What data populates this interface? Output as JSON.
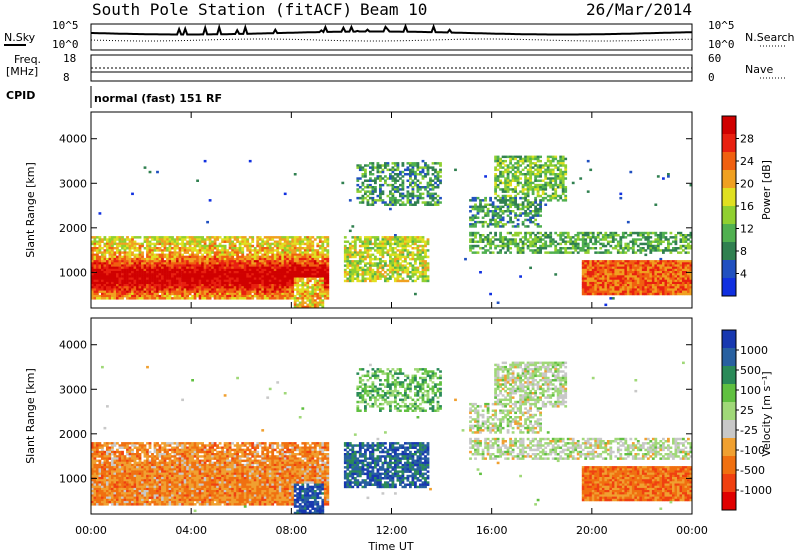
{
  "header": {
    "station": "South Pole Station (fitACF)",
    "beam": "Beam 10",
    "date": "26/Mar/2014"
  },
  "noise_panel": {
    "left_label": "N.Sky",
    "right_label": "N.Search",
    "tick_top": "10^5",
    "tick_bottom": "10^0"
  },
  "freq_panel": {
    "left_label_1": "Freq.",
    "left_label_2": "[MHz]",
    "right_label": "Nave",
    "left_ticks": [
      "18",
      "8"
    ],
    "right_ticks": [
      "60",
      "0"
    ]
  },
  "cpid": {
    "label": "CPID",
    "value": "normal (fast) 151 RF"
  },
  "chart_data": [
    {
      "type": "heatmap",
      "name": "power",
      "ylabel": "Slant Range [km]",
      "xlabel": "",
      "ylim": [
        200,
        4600
      ],
      "y_ticks": [
        1000,
        2000,
        3000,
        4000
      ],
      "colorbar": {
        "label": "Power [dB]",
        "ticks": [
          "4",
          "8",
          "12",
          "16",
          "20",
          "24",
          "28"
        ],
        "colors": [
          "#1030e0",
          "#2050c0",
          "#308050",
          "#50b050",
          "#90d030",
          "#e0e020",
          "#f0a020",
          "#f06010",
          "#e82010",
          "#d00000"
        ]
      }
    },
    {
      "type": "heatmap",
      "name": "velocity",
      "ylabel": "Slant Range [km]",
      "xlabel": "Time UT",
      "ylim": [
        200,
        4600
      ],
      "y_ticks": [
        1000,
        2000,
        3000,
        4000
      ],
      "x_ticks": [
        "00:00",
        "04:00",
        "08:00",
        "12:00",
        "16:00",
        "20:00",
        "00:00"
      ],
      "colorbar": {
        "label": "Velocity [m s⁻¹]",
        "ticks": [
          "1000",
          "500",
          "100",
          "25",
          "-25",
          "-100",
          "-500",
          "-1000"
        ],
        "colors": [
          "#1838b0",
          "#2860a0",
          "#2a8a58",
          "#60c040",
          "#a0d878",
          "#c8c8c8",
          "#f0a030",
          "#f07010",
          "#f04010",
          "#e00000"
        ]
      }
    }
  ]
}
